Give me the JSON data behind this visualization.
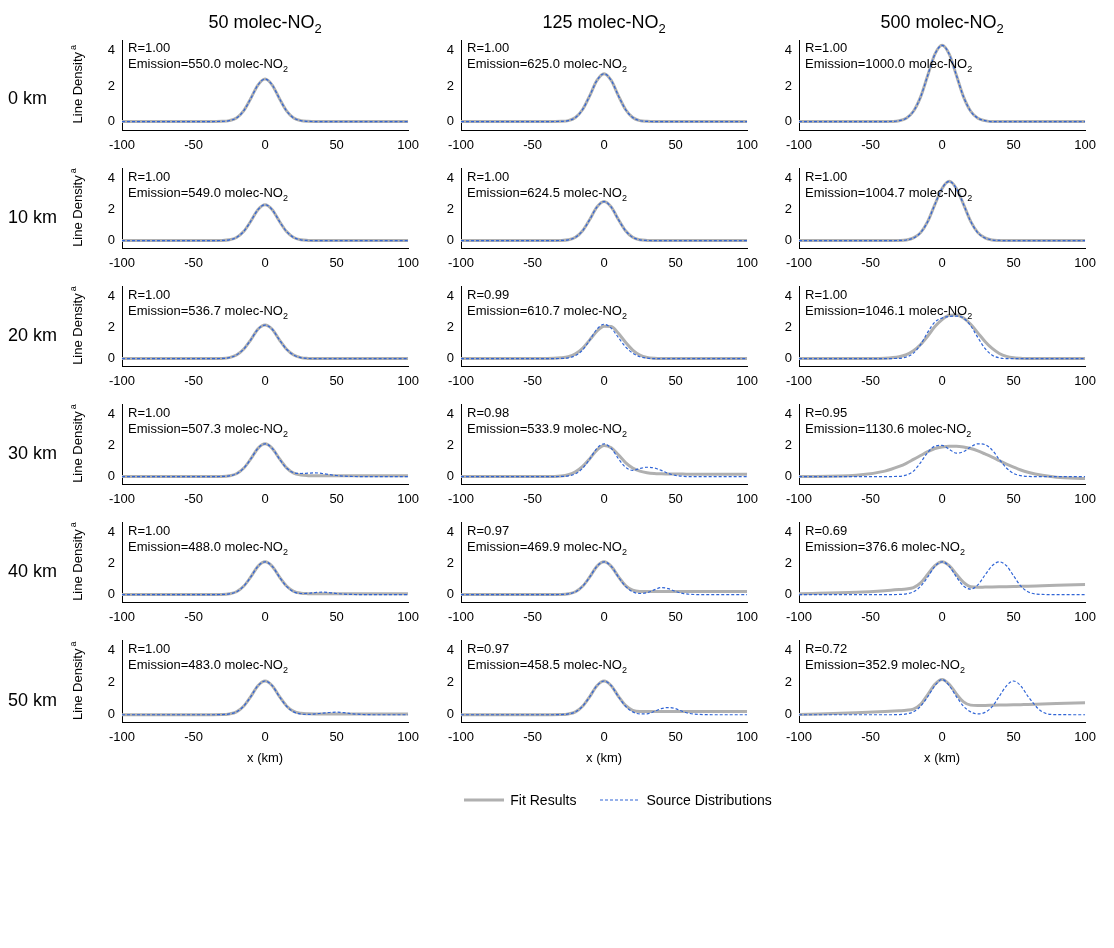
{
  "chart_data": [
    {
      "type": "line",
      "title": "50 molec-NO$_{2}$",
      "subtitle": "0 km",
      "ylabel": "Line Density$^{a}$",
      "annotations": [
        "R=1.00",
        "Emission=550.0 molec-NO$_{2}$"
      ],
      "xlim": [
        -100,
        100
      ],
      "xticks": [
        -100,
        -50,
        0,
        50,
        100
      ],
      "ylim": [
        -0.5,
        4.6
      ],
      "yticks": [
        0,
        2,
        4
      ],
      "x": [
        -100,
        -60,
        -40,
        -30,
        -25,
        -20,
        -15,
        -10,
        -5,
        0,
        5,
        10,
        15,
        20,
        25,
        30,
        35,
        40,
        45,
        50,
        55,
        60,
        70,
        80,
        100
      ],
      "series": [
        {
          "color": "#b0b0b0",
          "line_style": "solid",
          "values": [
            0,
            0,
            0,
            0.01,
            0.05,
            0.2,
            0.6,
            1.3,
            2.06,
            2.4,
            2.06,
            1.3,
            0.6,
            0.2,
            0.05,
            0.01,
            0,
            0,
            0,
            0,
            0,
            0,
            0,
            0,
            0
          ]
        },
        {
          "color": "#2f64d6",
          "line_style": "dashed",
          "values": [
            0,
            0,
            0,
            0.01,
            0.05,
            0.2,
            0.6,
            1.3,
            2.06,
            2.4,
            2.06,
            1.3,
            0.6,
            0.2,
            0.05,
            0.01,
            0,
            0,
            0,
            0,
            0,
            0,
            0,
            0,
            0
          ]
        }
      ]
    },
    {
      "type": "line",
      "title": "125 molec-NO$_{2}$",
      "annotations": [
        "R=1.00",
        "Emission=625.0 molec-NO$_{2}$"
      ],
      "xlim": [
        -100,
        100
      ],
      "xticks": [
        -100,
        -50,
        0,
        50,
        100
      ],
      "ylim": [
        -0.5,
        4.6
      ],
      "yticks": [
        0,
        2,
        4
      ],
      "x": [
        -100,
        -60,
        -40,
        -30,
        -25,
        -20,
        -15,
        -10,
        -5,
        0,
        5,
        10,
        15,
        20,
        25,
        30,
        35,
        40,
        45,
        50,
        55,
        60,
        70,
        80,
        100
      ],
      "series": [
        {
          "color": "#b0b0b0",
          "line_style": "solid",
          "values": [
            0,
            0,
            0,
            0.01,
            0.05,
            0.23,
            0.68,
            1.46,
            2.32,
            2.7,
            2.32,
            1.46,
            0.68,
            0.23,
            0.05,
            0.01,
            0,
            0,
            0,
            0,
            0,
            0,
            0,
            0,
            0
          ]
        },
        {
          "color": "#2f64d6",
          "line_style": "dashed",
          "values": [
            0,
            0,
            0,
            0.01,
            0.05,
            0.23,
            0.68,
            1.46,
            2.32,
            2.7,
            2.32,
            1.46,
            0.68,
            0.23,
            0.05,
            0.01,
            0,
            0,
            0,
            0,
            0,
            0,
            0,
            0,
            0
          ]
        }
      ]
    },
    {
      "type": "line",
      "title": "500 molec-NO$_{2}$",
      "annotations": [
        "R=1.00",
        "Emission=1000.0 molec-NO$_{2}$"
      ],
      "xlim": [
        -100,
        100
      ],
      "xticks": [
        -100,
        -50,
        0,
        50,
        100
      ],
      "ylim": [
        -0.5,
        4.6
      ],
      "yticks": [
        0,
        2,
        4
      ],
      "x": [
        -100,
        -60,
        -40,
        -30,
        -25,
        -20,
        -15,
        -10,
        -5,
        0,
        5,
        10,
        15,
        20,
        25,
        30,
        35,
        40,
        45,
        50,
        55,
        60,
        70,
        80,
        100
      ],
      "series": [
        {
          "color": "#b0b0b0",
          "line_style": "solid",
          "values": [
            0,
            0,
            0,
            0.05,
            0.19,
            0.58,
            1.39,
            2.61,
            3.8,
            4.3,
            3.8,
            2.61,
            1.39,
            0.58,
            0.19,
            0.05,
            0,
            0,
            0,
            0,
            0,
            0,
            0,
            0,
            0
          ]
        },
        {
          "color": "#2f64d6",
          "line_style": "dashed",
          "values": [
            0,
            0,
            0,
            0.05,
            0.19,
            0.58,
            1.39,
            2.61,
            3.8,
            4.3,
            3.8,
            2.61,
            1.39,
            0.58,
            0.19,
            0.05,
            0,
            0,
            0,
            0,
            0,
            0,
            0,
            0,
            0
          ]
        }
      ]
    },
    {
      "type": "line",
      "subtitle": "10 km",
      "ylabel": "Line Density$^{a}$",
      "annotations": [
        "R=1.00",
        "Emission=549.0 molec-NO$_{2}$"
      ],
      "xlim": [
        -100,
        100
      ],
      "xticks": [
        -100,
        -50,
        0,
        50,
        100
      ],
      "ylim": [
        -0.5,
        4.6
      ],
      "yticks": [
        0,
        2,
        4
      ],
      "x": [
        -100,
        -60,
        -40,
        -30,
        -25,
        -20,
        -15,
        -10,
        -5,
        0,
        5,
        10,
        15,
        20,
        25,
        30,
        35,
        40,
        45,
        50,
        55,
        60,
        70,
        80,
        100
      ],
      "series": [
        {
          "color": "#b0b0b0",
          "line_style": "solid",
          "values": [
            0,
            0,
            0,
            0.01,
            0.05,
            0.2,
            0.58,
            1.24,
            1.98,
            2.3,
            1.98,
            1.24,
            0.58,
            0.2,
            0.05,
            0.01,
            0,
            0,
            0,
            0,
            0,
            0,
            0,
            0,
            0
          ]
        },
        {
          "color": "#2f64d6",
          "line_style": "dashed",
          "values": [
            0,
            0,
            0,
            0.01,
            0.05,
            0.2,
            0.58,
            1.24,
            1.98,
            2.3,
            1.98,
            1.24,
            0.58,
            0.2,
            0.05,
            0.01,
            0,
            0,
            0,
            0,
            0,
            0,
            0,
            0,
            0
          ]
        }
      ]
    },
    {
      "type": "line",
      "annotations": [
        "R=1.00",
        "Emission=624.5 molec-NO$_{2}$"
      ],
      "xlim": [
        -100,
        100
      ],
      "xticks": [
        -100,
        -50,
        0,
        50,
        100
      ],
      "ylim": [
        -0.5,
        4.6
      ],
      "yticks": [
        0,
        2,
        4
      ],
      "x": [
        -100,
        -60,
        -40,
        -30,
        -25,
        -20,
        -15,
        -10,
        -5,
        0,
        5,
        10,
        15,
        20,
        25,
        30,
        35,
        40,
        45,
        50,
        55,
        60,
        70,
        80,
        100
      ],
      "series": [
        {
          "color": "#b0b0b0",
          "line_style": "solid",
          "values": [
            0,
            0,
            0,
            0.01,
            0.05,
            0.21,
            0.63,
            1.35,
            2.15,
            2.5,
            2.15,
            1.35,
            0.63,
            0.21,
            0.05,
            0.01,
            0,
            0,
            0,
            0,
            0,
            0,
            0,
            0,
            0
          ]
        },
        {
          "color": "#2f64d6",
          "line_style": "dashed",
          "values": [
            0,
            0,
            0,
            0.01,
            0.05,
            0.21,
            0.63,
            1.35,
            2.15,
            2.5,
            2.15,
            1.35,
            0.63,
            0.21,
            0.05,
            0.01,
            0,
            0,
            0,
            0,
            0,
            0,
            0,
            0,
            0
          ]
        }
      ]
    },
    {
      "type": "line",
      "annotations": [
        "R=1.00",
        "Emission=1004.7 molec-NO$_{2}$"
      ],
      "xlim": [
        -100,
        100
      ],
      "xticks": [
        -100,
        -50,
        0,
        50,
        100
      ],
      "ylim": [
        -0.5,
        4.6
      ],
      "yticks": [
        0,
        2,
        4
      ],
      "x": [
        -100,
        -60,
        -40,
        -30,
        -25,
        -20,
        -15,
        -10,
        -5,
        0,
        5,
        10,
        15,
        20,
        25,
        30,
        35,
        40,
        45,
        50,
        55,
        60,
        70,
        80,
        100
      ],
      "series": [
        {
          "color": "#b0b0b0",
          "line_style": "solid",
          "values": [
            0,
            0,
            0,
            0.01,
            0.04,
            0.17,
            0.51,
            1.23,
            2.32,
            3.34,
            3.8,
            3.34,
            2.32,
            1.23,
            0.51,
            0.17,
            0.04,
            0.01,
            0,
            0,
            0,
            0,
            0,
            0,
            0
          ]
        },
        {
          "color": "#2f64d6",
          "line_style": "dashed",
          "values": [
            0,
            0,
            0,
            0.01,
            0.04,
            0.17,
            0.51,
            1.23,
            2.32,
            3.34,
            3.8,
            3.34,
            2.32,
            1.23,
            0.51,
            0.17,
            0.04,
            0.01,
            0,
            0,
            0,
            0,
            0,
            0,
            0
          ]
        }
      ]
    },
    {
      "type": "line",
      "subtitle": "20 km",
      "ylabel": "Line Density$^{a}$",
      "annotations": [
        "R=1.00",
        "Emission=536.7 molec-NO$_{2}$"
      ],
      "xlim": [
        -100,
        100
      ],
      "xticks": [
        -100,
        -50,
        0,
        50,
        100
      ],
      "ylim": [
        -0.5,
        4.6
      ],
      "yticks": [
        0,
        2,
        4
      ],
      "x": [
        -100,
        -60,
        -40,
        -30,
        -25,
        -20,
        -15,
        -10,
        -5,
        0,
        5,
        10,
        15,
        20,
        25,
        30,
        35,
        40,
        45,
        50,
        55,
        60,
        70,
        80,
        100
      ],
      "series": [
        {
          "color": "#b0b0b0",
          "line_style": "solid",
          "values": [
            0,
            0,
            0,
            0.01,
            0.06,
            0.23,
            0.6,
            1.2,
            1.88,
            2.15,
            1.88,
            1.2,
            0.6,
            0.23,
            0.06,
            0.01,
            0,
            0,
            0,
            0,
            0,
            0,
            0,
            0,
            0
          ]
        },
        {
          "color": "#2f64d6",
          "line_style": "dashed",
          "values": [
            0,
            0,
            0,
            0.01,
            0.06,
            0.23,
            0.6,
            1.2,
            1.88,
            2.15,
            1.88,
            1.2,
            0.6,
            0.23,
            0.06,
            0.01,
            0,
            0,
            0,
            0,
            0,
            0,
            0,
            0,
            0
          ]
        }
      ]
    },
    {
      "type": "line",
      "annotations": [
        "R=0.99",
        "Emission=610.7 molec-NO$_{2}$"
      ],
      "xlim": [
        -100,
        100
      ],
      "xticks": [
        -100,
        -50,
        0,
        50,
        100
      ],
      "ylim": [
        -0.5,
        4.6
      ],
      "yticks": [
        0,
        2,
        4
      ],
      "x": [
        -100,
        -60,
        -40,
        -30,
        -25,
        -20,
        -15,
        -10,
        -5,
        0,
        5,
        10,
        15,
        20,
        25,
        30,
        35,
        40,
        45,
        50,
        55,
        60,
        70,
        80,
        100
      ],
      "series": [
        {
          "color": "#b0b0b0",
          "line_style": "solid",
          "values": [
            0,
            0,
            0,
            0.05,
            0.12,
            0.3,
            0.66,
            1.2,
            1.75,
            2.07,
            2.05,
            1.62,
            1.05,
            0.55,
            0.23,
            0.08,
            0.02,
            0,
            0,
            0,
            0,
            0,
            0,
            0,
            0
          ]
        },
        {
          "color": "#2f64d6",
          "line_style": "dashed",
          "values": [
            0,
            0,
            0,
            0.01,
            0.05,
            0.19,
            0.55,
            1.19,
            1.89,
            2.2,
            1.95,
            1.35,
            0.75,
            0.35,
            0.12,
            0.03,
            0,
            0,
            0,
            0,
            0,
            0,
            0,
            0,
            0
          ]
        }
      ]
    },
    {
      "type": "line",
      "annotations": [
        "R=1.00",
        "Emission=1046.1 molec-NO$_{2}$"
      ],
      "xlim": [
        -100,
        100
      ],
      "xticks": [
        -100,
        -50,
        0,
        50,
        100
      ],
      "ylim": [
        -0.5,
        4.6
      ],
      "yticks": [
        0,
        2,
        4
      ],
      "x": [
        -100,
        -60,
        -40,
        -30,
        -25,
        -20,
        -15,
        -10,
        -5,
        0,
        5,
        10,
        15,
        20,
        25,
        30,
        35,
        40,
        45,
        50,
        55,
        60,
        70,
        80,
        100
      ],
      "series": [
        {
          "color": "#b0b0b0",
          "line_style": "solid",
          "values": [
            0,
            0,
            0.03,
            0.12,
            0.25,
            0.5,
            0.9,
            1.45,
            2.05,
            2.5,
            2.78,
            2.8,
            2.6,
            2.2,
            1.65,
            1.1,
            0.65,
            0.33,
            0.14,
            0.05,
            0.02,
            0,
            0,
            0,
            0
          ]
        },
        {
          "color": "#2f64d6",
          "line_style": "dashed",
          "values": [
            0,
            0,
            0,
            0.02,
            0.1,
            0.35,
            0.9,
            1.7,
            2.35,
            2.6,
            2.7,
            2.72,
            2.6,
            2.1,
            1.35,
            0.65,
            0.22,
            0.05,
            0,
            0,
            0,
            0,
            0,
            0,
            0
          ]
        }
      ]
    },
    {
      "type": "line",
      "subtitle": "30 km",
      "ylabel": "Line Density$^{a}$",
      "annotations": [
        "R=1.00",
        "Emission=507.3 molec-NO$_{2}$"
      ],
      "xlim": [
        -100,
        100
      ],
      "xticks": [
        -100,
        -50,
        0,
        50,
        100
      ],
      "ylim": [
        -0.5,
        4.6
      ],
      "yticks": [
        0,
        2,
        4
      ],
      "x": [
        -100,
        -60,
        -40,
        -30,
        -25,
        -20,
        -15,
        -10,
        -5,
        0,
        5,
        10,
        15,
        20,
        25,
        30,
        35,
        40,
        45,
        50,
        55,
        60,
        70,
        80,
        100
      ],
      "series": [
        {
          "color": "#b0b0b0",
          "line_style": "solid",
          "values": [
            0,
            0,
            0,
            0.01,
            0.05,
            0.18,
            0.53,
            1.13,
            1.81,
            2.1,
            1.81,
            1.15,
            0.56,
            0.22,
            0.1,
            0.06,
            0.05,
            0.05,
            0.05,
            0.05,
            0.05,
            0.05,
            0.05,
            0.05,
            0.05
          ]
        },
        {
          "color": "#2f64d6",
          "line_style": "dashed",
          "values": [
            0,
            0,
            0,
            0.01,
            0.05,
            0.18,
            0.53,
            1.13,
            1.81,
            2.1,
            1.81,
            1.13,
            0.55,
            0.25,
            0.2,
            0.22,
            0.24,
            0.2,
            0.13,
            0.07,
            0.03,
            0.01,
            0,
            0,
            0
          ]
        }
      ]
    },
    {
      "type": "line",
      "annotations": [
        "R=0.98",
        "Emission=533.9 molec-NO$_{2}$"
      ],
      "xlim": [
        -100,
        100
      ],
      "xticks": [
        -100,
        -50,
        0,
        50,
        100
      ],
      "ylim": [
        -0.5,
        4.6
      ],
      "yticks": [
        0,
        2,
        4
      ],
      "x": [
        -100,
        -60,
        -40,
        -30,
        -25,
        -20,
        -15,
        -10,
        -5,
        0,
        5,
        10,
        15,
        20,
        25,
        30,
        35,
        40,
        45,
        50,
        55,
        60,
        70,
        80,
        100
      ],
      "series": [
        {
          "color": "#b0b0b0",
          "line_style": "solid",
          "values": [
            0,
            0,
            0,
            0.04,
            0.12,
            0.3,
            0.65,
            1.15,
            1.7,
            2.0,
            1.85,
            1.4,
            0.9,
            0.55,
            0.35,
            0.25,
            0.2,
            0.18,
            0.17,
            0.16,
            0.16,
            0.15,
            0.15,
            0.15,
            0.15
          ]
        },
        {
          "color": "#2f64d6",
          "line_style": "dashed",
          "values": [
            0,
            0,
            0,
            0.01,
            0.05,
            0.18,
            0.53,
            1.13,
            1.81,
            2.1,
            1.81,
            1.15,
            0.6,
            0.4,
            0.52,
            0.6,
            0.55,
            0.4,
            0.2,
            0.08,
            0.02,
            0,
            0,
            0,
            0
          ]
        }
      ]
    },
    {
      "type": "line",
      "annotations": [
        "R=0.95",
        "Emission=1130.6 molec-NO$_{2}$"
      ],
      "xlim": [
        -100,
        100
      ],
      "xticks": [
        -100,
        -50,
        0,
        50,
        100
      ],
      "ylim": [
        -0.5,
        4.6
      ],
      "yticks": [
        0,
        2,
        4
      ],
      "x": [
        -100,
        -60,
        -40,
        -30,
        -25,
        -20,
        -15,
        -10,
        -5,
        0,
        5,
        10,
        15,
        20,
        25,
        30,
        35,
        40,
        45,
        50,
        55,
        60,
        70,
        80,
        100
      ],
      "series": [
        {
          "color": "#b0b0b0",
          "line_style": "solid",
          "values": [
            0,
            0.08,
            0.35,
            0.65,
            0.85,
            1.1,
            1.35,
            1.6,
            1.8,
            1.9,
            1.95,
            1.95,
            1.9,
            1.8,
            1.65,
            1.45,
            1.25,
            1.02,
            0.8,
            0.6,
            0.42,
            0.28,
            0.08,
            -0.04,
            -0.12
          ]
        },
        {
          "color": "#2f64d6",
          "line_style": "dashed",
          "values": [
            0,
            0,
            0,
            0.02,
            0.1,
            0.35,
            0.9,
            1.55,
            1.95,
            2.0,
            1.75,
            1.5,
            1.6,
            1.9,
            2.1,
            2.05,
            1.7,
            1.1,
            0.55,
            0.2,
            0.06,
            0.01,
            0,
            0,
            0
          ]
        }
      ]
    },
    {
      "type": "line",
      "subtitle": "40 km",
      "ylabel": "Line Density$^{a}$",
      "annotations": [
        "R=1.00",
        "Emission=488.0 molec-NO$_{2}$"
      ],
      "xlim": [
        -100,
        100
      ],
      "xticks": [
        -100,
        -50,
        0,
        50,
        100
      ],
      "ylim": [
        -0.5,
        4.6
      ],
      "yticks": [
        0,
        2,
        4
      ],
      "x": [
        -100,
        -60,
        -40,
        -30,
        -25,
        -20,
        -15,
        -10,
        -5,
        0,
        5,
        10,
        15,
        20,
        25,
        30,
        35,
        40,
        45,
        50,
        55,
        60,
        70,
        80,
        100
      ],
      "series": [
        {
          "color": "#b0b0b0",
          "line_style": "solid",
          "values": [
            0,
            0,
            0,
            0.01,
            0.05,
            0.18,
            0.53,
            1.13,
            1.81,
            2.1,
            1.81,
            1.14,
            0.55,
            0.21,
            0.09,
            0.06,
            0.05,
            0.05,
            0.05,
            0.05,
            0.05,
            0.05,
            0.05,
            0.05,
            0.05
          ]
        },
        {
          "color": "#2f64d6",
          "line_style": "dashed",
          "values": [
            0,
            0,
            0,
            0.01,
            0.05,
            0.18,
            0.53,
            1.13,
            1.81,
            2.1,
            1.81,
            1.13,
            0.53,
            0.18,
            0.07,
            0.08,
            0.13,
            0.16,
            0.13,
            0.07,
            0.03,
            0.01,
            0,
            0,
            0
          ]
        }
      ]
    },
    {
      "type": "line",
      "annotations": [
        "R=0.97",
        "Emission=469.9 molec-NO$_{2}$"
      ],
      "xlim": [
        -100,
        100
      ],
      "xticks": [
        -100,
        -50,
        0,
        50,
        100
      ],
      "ylim": [
        -0.5,
        4.6
      ],
      "yticks": [
        0,
        2,
        4
      ],
      "x": [
        -100,
        -60,
        -40,
        -30,
        -25,
        -20,
        -15,
        -10,
        -5,
        0,
        5,
        10,
        15,
        20,
        25,
        30,
        35,
        40,
        45,
        50,
        55,
        60,
        70,
        80,
        100
      ],
      "series": [
        {
          "color": "#b0b0b0",
          "line_style": "solid",
          "values": [
            0,
            0,
            0,
            0.01,
            0.05,
            0.18,
            0.53,
            1.13,
            1.81,
            2.1,
            1.81,
            1.15,
            0.58,
            0.28,
            0.2,
            0.2,
            0.2,
            0.2,
            0.2,
            0.2,
            0.2,
            0.2,
            0.2,
            0.2,
            0.2
          ]
        },
        {
          "color": "#2f64d6",
          "line_style": "dashed",
          "values": [
            0,
            0,
            0,
            0.01,
            0.05,
            0.18,
            0.53,
            1.13,
            1.81,
            2.1,
            1.81,
            1.13,
            0.53,
            0.18,
            0.07,
            0.12,
            0.3,
            0.45,
            0.38,
            0.2,
            0.08,
            0.02,
            0,
            0,
            0
          ]
        }
      ]
    },
    {
      "type": "line",
      "annotations": [
        "R=0.69",
        "Emission=376.6 molec-NO$_{2}$"
      ],
      "xlim": [
        -100,
        100
      ],
      "xticks": [
        -100,
        -50,
        0,
        50,
        100
      ],
      "ylim": [
        -0.5,
        4.6
      ],
      "yticks": [
        0,
        2,
        4
      ],
      "x": [
        -100,
        -60,
        -40,
        -30,
        -25,
        -20,
        -15,
        -10,
        -5,
        0,
        5,
        10,
        15,
        20,
        25,
        30,
        35,
        40,
        45,
        50,
        55,
        60,
        70,
        80,
        100
      ],
      "series": [
        {
          "color": "#b0b0b0",
          "line_style": "solid",
          "values": [
            0.05,
            0.15,
            0.25,
            0.32,
            0.36,
            0.45,
            0.75,
            1.3,
            1.85,
            2.1,
            1.85,
            1.3,
            0.78,
            0.5,
            0.47,
            0.48,
            0.49,
            0.5,
            0.51,
            0.52,
            0.53,
            0.54,
            0.57,
            0.6,
            0.65
          ]
        },
        {
          "color": "#2f64d6",
          "line_style": "dashed",
          "values": [
            0,
            0,
            0,
            0.01,
            0.05,
            0.18,
            0.53,
            1.13,
            1.81,
            2.1,
            1.81,
            1.13,
            0.55,
            0.35,
            0.62,
            1.25,
            1.85,
            2.1,
            1.85,
            1.2,
            0.55,
            0.18,
            0.01,
            0,
            0
          ]
        }
      ]
    },
    {
      "type": "line",
      "subtitle": "50 km",
      "ylabel": "Line Density$^{a}$",
      "xlabel": "x (km)",
      "annotations": [
        "R=1.00",
        "Emission=483.0 molec-NO$_{2}$"
      ],
      "xlim": [
        -100,
        100
      ],
      "xticks": [
        -100,
        -50,
        0,
        50,
        100
      ],
      "ylim": [
        -0.5,
        4.6
      ],
      "yticks": [
        0,
        2,
        4
      ],
      "x": [
        -100,
        -60,
        -40,
        -30,
        -25,
        -20,
        -15,
        -10,
        -5,
        0,
        5,
        10,
        15,
        20,
        25,
        30,
        35,
        40,
        45,
        50,
        55,
        60,
        70,
        80,
        100
      ],
      "series": [
        {
          "color": "#b0b0b0",
          "line_style": "solid",
          "values": [
            0,
            0,
            0,
            0.01,
            0.05,
            0.18,
            0.53,
            1.13,
            1.81,
            2.1,
            1.81,
            1.14,
            0.55,
            0.21,
            0.09,
            0.06,
            0.05,
            0.05,
            0.05,
            0.05,
            0.05,
            0.05,
            0.05,
            0.05,
            0.05
          ]
        },
        {
          "color": "#2f64d6",
          "line_style": "dashed",
          "values": [
            0,
            0,
            0,
            0.01,
            0.05,
            0.18,
            0.53,
            1.13,
            1.81,
            2.1,
            1.81,
            1.13,
            0.53,
            0.18,
            0.05,
            0.02,
            0.05,
            0.1,
            0.14,
            0.16,
            0.13,
            0.07,
            0.01,
            0,
            0
          ]
        }
      ]
    },
    {
      "type": "line",
      "xlabel": "x (km)",
      "annotations": [
        "R=0.97",
        "Emission=458.5 molec-NO$_{2}$"
      ],
      "xlim": [
        -100,
        100
      ],
      "xticks": [
        -100,
        -50,
        0,
        50,
        100
      ],
      "ylim": [
        -0.5,
        4.6
      ],
      "yticks": [
        0,
        2,
        4
      ],
      "x": [
        -100,
        -60,
        -40,
        -30,
        -25,
        -20,
        -15,
        -10,
        -5,
        0,
        5,
        10,
        15,
        20,
        25,
        30,
        35,
        40,
        45,
        50,
        55,
        60,
        70,
        80,
        100
      ],
      "series": [
        {
          "color": "#b0b0b0",
          "line_style": "solid",
          "values": [
            0,
            0,
            0,
            0.01,
            0.05,
            0.18,
            0.53,
            1.13,
            1.81,
            2.1,
            1.81,
            1.15,
            0.58,
            0.28,
            0.2,
            0.2,
            0.2,
            0.2,
            0.2,
            0.2,
            0.2,
            0.2,
            0.2,
            0.2,
            0.2
          ]
        },
        {
          "color": "#2f64d6",
          "line_style": "dashed",
          "values": [
            0,
            0,
            0,
            0.01,
            0.05,
            0.18,
            0.53,
            1.13,
            1.81,
            2.1,
            1.81,
            1.13,
            0.53,
            0.18,
            0.05,
            0.06,
            0.2,
            0.38,
            0.45,
            0.38,
            0.2,
            0.08,
            0.01,
            0,
            0
          ]
        }
      ]
    },
    {
      "type": "line",
      "xlabel": "x (km)",
      "legend": "bottom",
      "annotations": [
        "R=0.72",
        "Emission=352.9 molec-NO$_{2}$"
      ],
      "xlim": [
        -100,
        100
      ],
      "xticks": [
        -100,
        -50,
        0,
        50,
        100
      ],
      "ylim": [
        -0.5,
        4.6
      ],
      "yticks": [
        0,
        2,
        4
      ],
      "x": [
        -100,
        -60,
        -40,
        -30,
        -25,
        -20,
        -15,
        -10,
        -5,
        0,
        5,
        10,
        15,
        20,
        25,
        30,
        35,
        40,
        45,
        50,
        55,
        60,
        70,
        80,
        100
      ],
      "series": [
        {
          "name": "Fit Results",
          "color": "#b0b0b0",
          "line_style": "solid",
          "values": [
            0.02,
            0.12,
            0.2,
            0.25,
            0.28,
            0.35,
            0.65,
            1.25,
            1.9,
            2.2,
            1.9,
            1.3,
            0.8,
            0.6,
            0.58,
            0.58,
            0.59,
            0.6,
            0.61,
            0.62,
            0.63,
            0.64,
            0.67,
            0.7,
            0.75
          ]
        },
        {
          "name": "Source Distributions",
          "color": "#2f64d6",
          "line_style": "dashed",
          "values": [
            0,
            0,
            0,
            0.01,
            0.05,
            0.18,
            0.53,
            1.13,
            1.81,
            2.2,
            1.81,
            1.13,
            0.53,
            0.18,
            0.05,
            0.15,
            0.5,
            1.15,
            1.8,
            2.1,
            1.8,
            1.15,
            0.18,
            0.01,
            0
          ]
        }
      ]
    }
  ]
}
